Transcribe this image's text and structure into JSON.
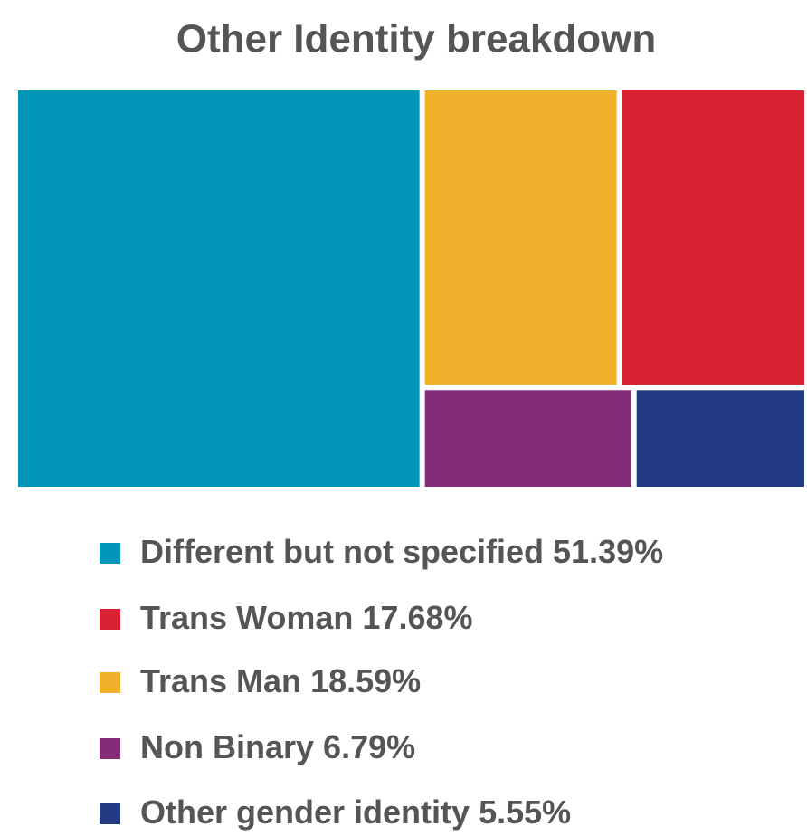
{
  "chart_data": {
    "type": "treemap",
    "title": "Other Identity breakdown",
    "categories": [
      "Different but not specified",
      "Trans Woman",
      "Trans Man",
      "Non Binary",
      "Other gender identity"
    ],
    "values": [
      51.39,
      17.68,
      18.59,
      6.79,
      5.55
    ],
    "value_labels": [
      "51.39%",
      "17.68%",
      "18.59%",
      "6.79%",
      "5.55%"
    ],
    "colors": [
      "#0096b8",
      "#d92332",
      "#f0b22b",
      "#832d79",
      "#213a83"
    ]
  }
}
